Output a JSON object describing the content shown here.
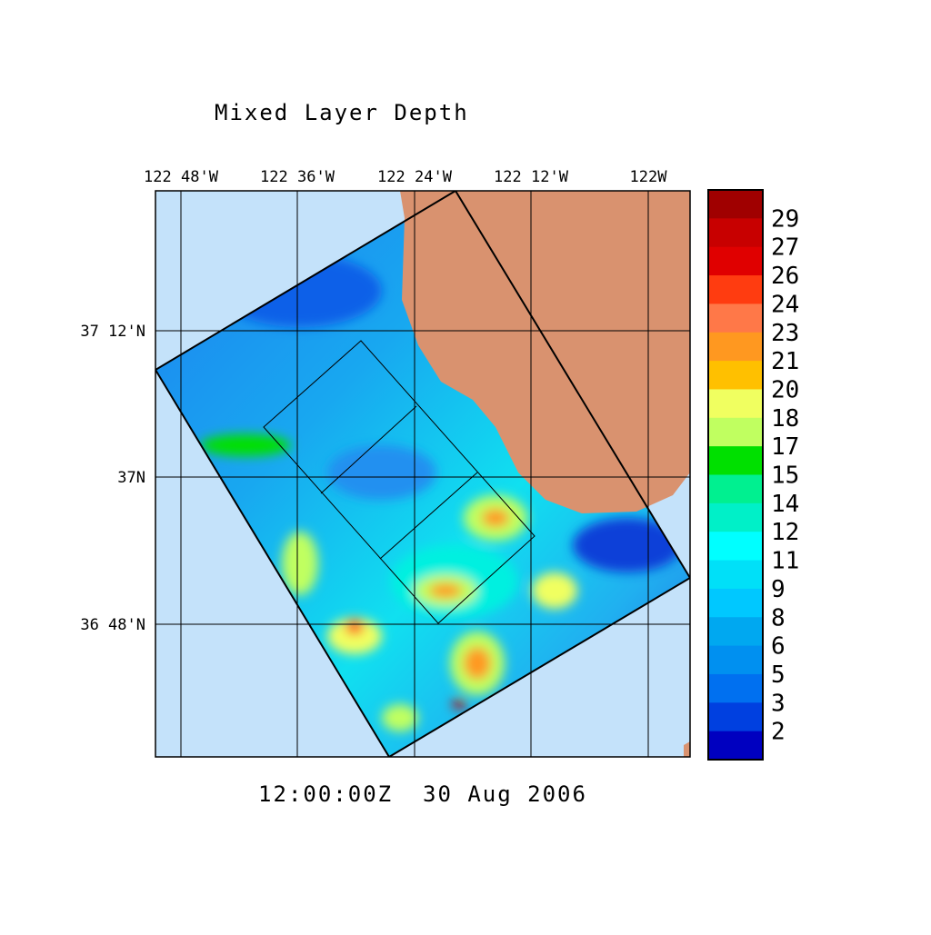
{
  "title": "Mixed Layer Depth",
  "lon_labels": [
    "122 48'W",
    "122 36'W",
    "122 24'W",
    "122 12'W",
    "122W"
  ],
  "lat_labels": [
    "37 12'N",
    "37N",
    "36 48'N"
  ],
  "timestamp": "12:00:00Z  30 Aug 2006",
  "colorbar": {
    "ticks": [
      29,
      27,
      26,
      24,
      23,
      21,
      20,
      18,
      17,
      15,
      14,
      12,
      11,
      9,
      8,
      6,
      5,
      3,
      2
    ],
    "colors": [
      "#a00000",
      "#c80000",
      "#e00000",
      "#ff3c10",
      "#ff7848",
      "#ff9820",
      "#ffc000",
      "#f0ff60",
      "#c0ff60",
      "#00e000",
      "#00f090",
      "#00f0c8",
      "#00ffff",
      "#00e0f8",
      "#00c8ff",
      "#00a8f0",
      "#0090f0",
      "#0070f0",
      "#0040e0",
      "#0000c0"
    ]
  }
}
